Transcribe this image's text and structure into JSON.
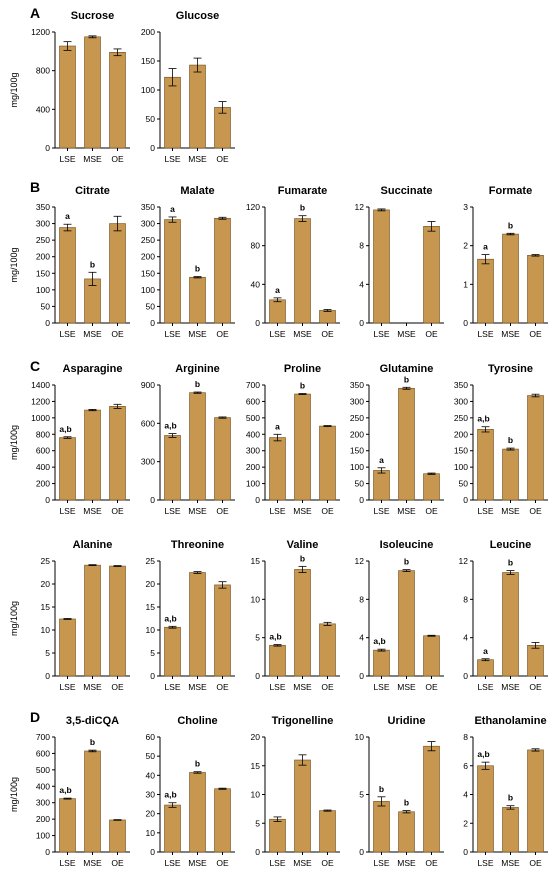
{
  "colors": {
    "bar_fill": "#C8974F",
    "bar_stroke": "#6E4E1F",
    "axis": "#000000"
  },
  "sections": [
    {
      "letter": "A"
    },
    {
      "letter": "B"
    },
    {
      "letter": "C"
    },
    {
      "letter": "D"
    }
  ],
  "chart_data": [
    {
      "type": "bar",
      "section": "A",
      "title": "Sucrose",
      "ylabel": "mg/100g",
      "categories": [
        "LSE",
        "MSE",
        "OE"
      ],
      "values": [
        1055,
        1150,
        990
      ],
      "errors": [
        45,
        10,
        35
      ],
      "sig": [
        "",
        "",
        ""
      ],
      "ylim": [
        0,
        1200
      ],
      "yticks": [
        "0",
        "400",
        "800",
        "1200"
      ]
    },
    {
      "type": "bar",
      "section": "A",
      "title": "Glucose",
      "ylabel": "",
      "categories": [
        "LSE",
        "MSE",
        "OE"
      ],
      "values": [
        122,
        143,
        70
      ],
      "errors": [
        15,
        12,
        10
      ],
      "sig": [
        "",
        "",
        ""
      ],
      "ylim": [
        0,
        200
      ],
      "yticks": [
        "0",
        "50",
        "100",
        "150",
        "200"
      ]
    },
    {
      "type": "bar",
      "section": "B",
      "title": "Citrate",
      "ylabel": "mg/100g",
      "categories": [
        "LSE",
        "MSE",
        "OE"
      ],
      "values": [
        288,
        133,
        300
      ],
      "errors": [
        10,
        20,
        22
      ],
      "sig": [
        "a",
        "b",
        ""
      ],
      "ylim": [
        0,
        350
      ],
      "yticks": [
        "0",
        "50",
        "100",
        "150",
        "200",
        "250",
        "300",
        "350"
      ]
    },
    {
      "type": "bar",
      "section": "B",
      "title": "Malate",
      "ylabel": "",
      "categories": [
        "LSE",
        "MSE",
        "OE"
      ],
      "values": [
        312,
        138,
        316
      ],
      "errors": [
        8,
        2,
        3
      ],
      "sig": [
        "a",
        "b",
        ""
      ],
      "ylim": [
        0,
        350
      ],
      "yticks": [
        "0",
        "50",
        "100",
        "150",
        "200",
        "250",
        "300",
        "350"
      ]
    },
    {
      "type": "bar",
      "section": "B",
      "title": "Fumarate",
      "ylabel": "",
      "categories": [
        "LSE",
        "MSE",
        "OE"
      ],
      "values": [
        24,
        108,
        13
      ],
      "errors": [
        2,
        3,
        1
      ],
      "sig": [
        "a",
        "b",
        ""
      ],
      "ylim": [
        0,
        120
      ],
      "yticks": [
        "0",
        "40",
        "80",
        "120"
      ]
    },
    {
      "type": "bar",
      "section": "B",
      "title": "Succinate",
      "ylabel": "",
      "categories": [
        "LSE",
        "MSE",
        "OE"
      ],
      "values": [
        11.7,
        0,
        10
      ],
      "errors": [
        0.1,
        0,
        0.5
      ],
      "sig": [
        "",
        "",
        ""
      ],
      "ylim": [
        0,
        12
      ],
      "yticks": [
        "0",
        "4",
        "8",
        "12"
      ]
    },
    {
      "type": "bar",
      "section": "B",
      "title": "Formate",
      "ylabel": "",
      "categories": [
        "LSE",
        "MSE",
        "OE"
      ],
      "values": [
        1.65,
        2.3,
        1.75
      ],
      "errors": [
        0.12,
        0.02,
        0.02
      ],
      "sig": [
        "a",
        "b",
        ""
      ],
      "ylim": [
        0,
        3
      ],
      "yticks": [
        "0",
        "1",
        "2",
        "3"
      ]
    },
    {
      "type": "bar",
      "section": "C",
      "title": "Asparagine",
      "ylabel": "mg/100g",
      "categories": [
        "LSE",
        "MSE",
        "OE"
      ],
      "values": [
        760,
        1095,
        1140
      ],
      "errors": [
        10,
        8,
        25
      ],
      "sig": [
        "a,b",
        "",
        ""
      ],
      "ylim": [
        0,
        1400
      ],
      "yticks": [
        "0",
        "200",
        "400",
        "600",
        "800",
        "1000",
        "1200",
        "1400"
      ]
    },
    {
      "type": "bar",
      "section": "C",
      "title": "Arginine",
      "ylabel": "",
      "categories": [
        "LSE",
        "MSE",
        "OE"
      ],
      "values": [
        505,
        840,
        645
      ],
      "errors": [
        15,
        5,
        5
      ],
      "sig": [
        "a,b",
        "b",
        ""
      ],
      "ylim": [
        0,
        900
      ],
      "yticks": [
        "0",
        "300",
        "600",
        "900"
      ]
    },
    {
      "type": "bar",
      "section": "C",
      "title": "Proline",
      "ylabel": "",
      "categories": [
        "LSE",
        "MSE",
        "OE"
      ],
      "values": [
        380,
        645,
        450
      ],
      "errors": [
        20,
        3,
        3
      ],
      "sig": [
        "a",
        "b",
        ""
      ],
      "ylim": [
        0,
        700
      ],
      "yticks": [
        "0",
        "100",
        "200",
        "300",
        "400",
        "500",
        "600",
        "700"
      ]
    },
    {
      "type": "bar",
      "section": "C",
      "title": "Glutamine",
      "ylabel": "",
      "categories": [
        "LSE",
        "MSE",
        "OE"
      ],
      "values": [
        90,
        340,
        80
      ],
      "errors": [
        8,
        3,
        2
      ],
      "sig": [
        "a",
        "b",
        ""
      ],
      "ylim": [
        0,
        350
      ],
      "yticks": [
        "0",
        "50",
        "100",
        "150",
        "200",
        "250",
        "300",
        "350"
      ]
    },
    {
      "type": "bar",
      "section": "C",
      "title": "Tyrosine",
      "ylabel": "",
      "categories": [
        "LSE",
        "MSE",
        "OE"
      ],
      "values": [
        215,
        155,
        318
      ],
      "errors": [
        8,
        3,
        4
      ],
      "sig": [
        "a,b",
        "b",
        ""
      ],
      "ylim": [
        0,
        350
      ],
      "yticks": [
        "0",
        "50",
        "100",
        "150",
        "200",
        "250",
        "300",
        "350"
      ]
    },
    {
      "type": "bar",
      "section": "C",
      "title": "Alanine",
      "ylabel": "mg/100g",
      "categories": [
        "LSE",
        "MSE",
        "OE"
      ],
      "values": [
        12.4,
        24.1,
        23.9
      ],
      "errors": [
        0.1,
        0.1,
        0.1
      ],
      "sig": [
        "",
        "",
        ""
      ],
      "ylim": [
        0,
        25
      ],
      "yticks": [
        "0",
        "5",
        "10",
        "15",
        "20",
        "25"
      ]
    },
    {
      "type": "bar",
      "section": "C",
      "title": "Threonine",
      "ylabel": "",
      "categories": [
        "LSE",
        "MSE",
        "OE"
      ],
      "values": [
        10.6,
        22.5,
        19.8
      ],
      "errors": [
        0.2,
        0.2,
        0.7
      ],
      "sig": [
        "a,b",
        "",
        ""
      ],
      "ylim": [
        0,
        25
      ],
      "yticks": [
        "0",
        "5",
        "10",
        "15",
        "20",
        "25"
      ]
    },
    {
      "type": "bar",
      "section": "C",
      "title": "Valine",
      "ylabel": "",
      "categories": [
        "LSE",
        "MSE",
        "OE"
      ],
      "values": [
        4.0,
        13.9,
        6.8
      ],
      "errors": [
        0.1,
        0.4,
        0.2
      ],
      "sig": [
        "a,b",
        "b",
        ""
      ],
      "ylim": [
        0,
        15
      ],
      "yticks": [
        "0",
        "5",
        "10",
        "15"
      ]
    },
    {
      "type": "bar",
      "section": "C",
      "title": "Isoleucine",
      "ylabel": "",
      "categories": [
        "LSE",
        "MSE",
        "OE"
      ],
      "values": [
        2.7,
        11.0,
        4.2
      ],
      "errors": [
        0.1,
        0.1,
        0.05
      ],
      "sig": [
        "a,b",
        "b",
        ""
      ],
      "ylim": [
        0,
        12
      ],
      "yticks": [
        "0",
        "4",
        "8",
        "12"
      ]
    },
    {
      "type": "bar",
      "section": "C",
      "title": "Leucine",
      "ylabel": "",
      "categories": [
        "LSE",
        "MSE",
        "OE"
      ],
      "values": [
        1.7,
        10.8,
        3.2
      ],
      "errors": [
        0.1,
        0.2,
        0.3
      ],
      "sig": [
        "a",
        "b",
        ""
      ],
      "ylim": [
        0,
        12
      ],
      "yticks": [
        "0",
        "4",
        "8",
        "12"
      ]
    },
    {
      "type": "bar",
      "section": "D",
      "title": "3,5-diCQA",
      "ylabel": "mg/100g",
      "categories": [
        "LSE",
        "MSE",
        "OE"
      ],
      "values": [
        325,
        615,
        195
      ],
      "errors": [
        3,
        5,
        2
      ],
      "sig": [
        "a,b",
        "b",
        ""
      ],
      "ylim": [
        0,
        700
      ],
      "yticks": [
        "0",
        "100",
        "200",
        "300",
        "400",
        "500",
        "600",
        "700"
      ]
    },
    {
      "type": "bar",
      "section": "D",
      "title": "Choline",
      "ylabel": "",
      "categories": [
        "LSE",
        "MSE",
        "OE"
      ],
      "values": [
        24.5,
        41.5,
        33.0
      ],
      "errors": [
        1.2,
        0.4,
        0.3
      ],
      "sig": [
        "a,b",
        "b",
        ""
      ],
      "ylim": [
        0,
        60
      ],
      "yticks": [
        "0",
        "10",
        "20",
        "30",
        "40",
        "50",
        "60"
      ]
    },
    {
      "type": "bar",
      "section": "D",
      "title": "Trigonelline",
      "ylabel": "",
      "categories": [
        "LSE",
        "MSE",
        "OE"
      ],
      "values": [
        5.7,
        16.0,
        7.2
      ],
      "errors": [
        0.4,
        0.9,
        0.1
      ],
      "sig": [
        "",
        "",
        ""
      ],
      "ylim": [
        0,
        20
      ],
      "yticks": [
        "0",
        "5",
        "10",
        "15",
        "20"
      ]
    },
    {
      "type": "bar",
      "section": "D",
      "title": "Uridine",
      "ylabel": "",
      "categories": [
        "LSE",
        "MSE",
        "OE"
      ],
      "values": [
        4.4,
        3.5,
        9.2
      ],
      "errors": [
        0.4,
        0.1,
        0.4
      ],
      "sig": [
        "b",
        "b",
        ""
      ],
      "ylim": [
        0,
        10
      ],
      "yticks": [
        "0",
        "5",
        "10"
      ]
    },
    {
      "type": "bar",
      "section": "D",
      "title": "Ethanolamine",
      "ylabel": "",
      "categories": [
        "LSE",
        "MSE",
        "OE"
      ],
      "values": [
        6.0,
        3.1,
        7.1
      ],
      "errors": [
        0.25,
        0.12,
        0.08
      ],
      "sig": [
        "a,b",
        "b",
        ""
      ],
      "ylim": [
        0,
        8
      ],
      "yticks": [
        "0",
        "2",
        "4",
        "6",
        "8"
      ]
    }
  ]
}
